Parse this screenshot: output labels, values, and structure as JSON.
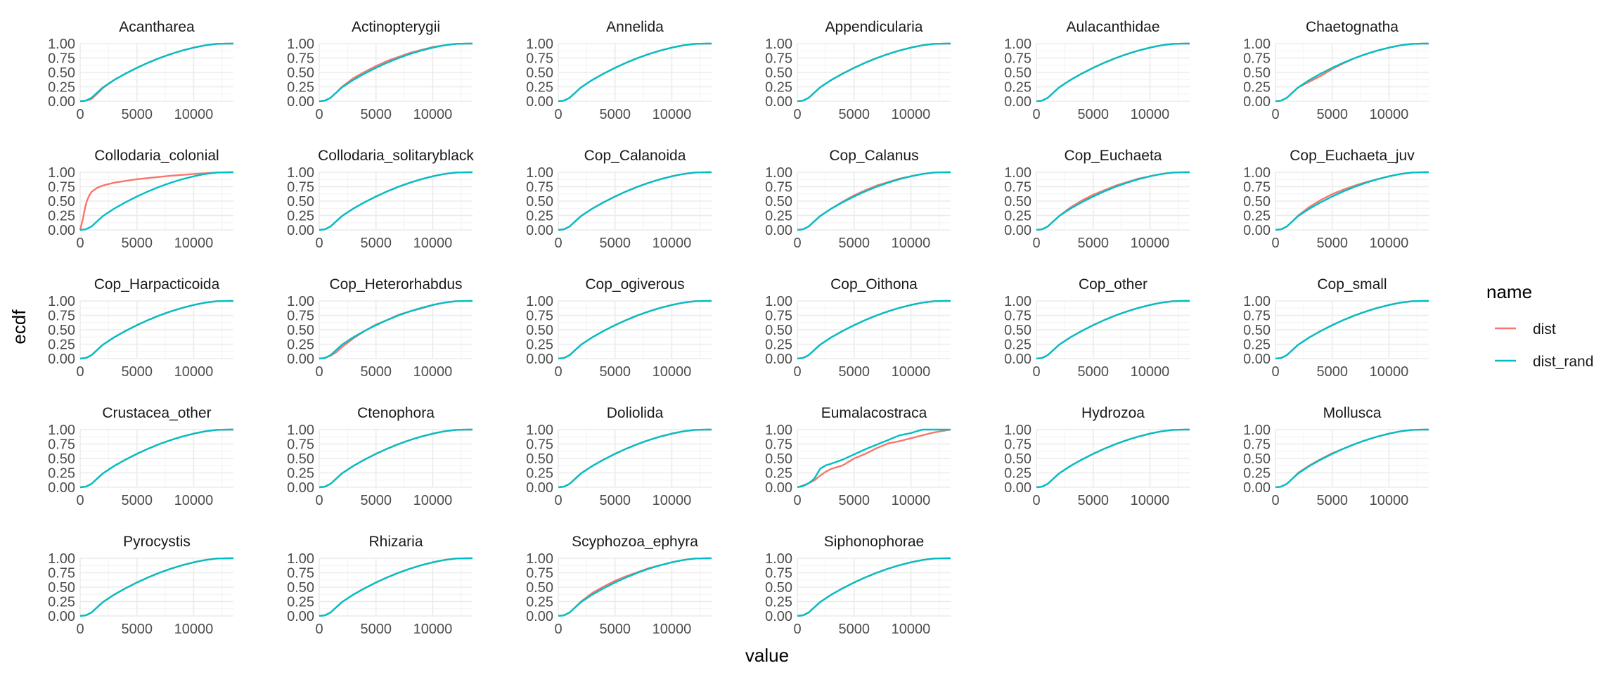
{
  "chart_data": {
    "type": "line",
    "facet_layout": "facet_wrap, 6 columns",
    "xlabel": "value",
    "ylabel": "ecdf",
    "xlim": [
      0,
      13500
    ],
    "ylim": [
      0,
      1
    ],
    "x_ticks": [
      0,
      5000,
      10000
    ],
    "y_ticks": [
      0.0,
      0.25,
      0.5,
      0.75,
      1.0
    ],
    "y_tick_labels": [
      "0.00",
      "0.25",
      "0.50",
      "0.75",
      "1.00"
    ],
    "grid": true,
    "legend": {
      "title": "name",
      "placement": "right",
      "entries": [
        {
          "name": "dist",
          "color": "#F8766D"
        },
        {
          "name": "dist_rand",
          "color": "#00BFC4"
        }
      ]
    },
    "colors": {
      "dist": "#F8766D",
      "dist_rand": "#00BFC4",
      "grid": "#EBEBEB"
    },
    "reference_curve": {
      "name": "dist_rand",
      "x": [
        0,
        500,
        1000,
        1500,
        2000,
        3000,
        4000,
        5000,
        6000,
        7000,
        8000,
        9000,
        10000,
        11000,
        12000,
        13000,
        13500
      ],
      "y": [
        0.0,
        0.01,
        0.06,
        0.15,
        0.24,
        0.37,
        0.48,
        0.58,
        0.67,
        0.75,
        0.82,
        0.88,
        0.93,
        0.97,
        0.995,
        1.0,
        1.0
      ]
    },
    "panels": [
      {
        "title": "Acantharea",
        "dist_offset": [
          0,
          0,
          -0.02,
          -0.02,
          -0.01,
          0,
          0,
          0,
          0,
          0,
          0,
          0,
          0,
          0,
          0,
          0,
          0
        ]
      },
      {
        "title": "Actinopterygii",
        "dist_offset": [
          0,
          0,
          0,
          0,
          0.01,
          0.03,
          0.03,
          0.03,
          0.03,
          0.02,
          0.02,
          0.01,
          0.01,
          0,
          0,
          0,
          0
        ]
      },
      {
        "title": "Annelida"
      },
      {
        "title": "Appendicularia"
      },
      {
        "title": "Aulacanthidae"
      },
      {
        "title": "Chaetognatha",
        "dist_offset": [
          0,
          0,
          0,
          0,
          0,
          -0.03,
          -0.04,
          -0.02,
          -0.01,
          0,
          0,
          0,
          0,
          0,
          0,
          0,
          0
        ]
      },
      {
        "title": "Collodaria_colonial",
        "dist_curve": {
          "x": [
            0,
            250,
            500,
            750,
            1000,
            1500,
            2000,
            3000,
            4000,
            5000,
            6000,
            7000,
            8000,
            10000,
            12000,
            13500
          ],
          "y": [
            0.0,
            0.2,
            0.45,
            0.58,
            0.66,
            0.73,
            0.77,
            0.82,
            0.85,
            0.88,
            0.9,
            0.92,
            0.94,
            0.97,
            0.995,
            1.0
          ]
        }
      },
      {
        "title": "Collodaria_solitaryblack"
      },
      {
        "title": "Cop_Calanoida"
      },
      {
        "title": "Cop_Calanus",
        "dist_offset": [
          0,
          0,
          0,
          0,
          0,
          0,
          0.01,
          0.02,
          0.02,
          0.02,
          0.01,
          0.01,
          0,
          0,
          0,
          0,
          0
        ]
      },
      {
        "title": "Cop_Euchaeta",
        "dist_offset": [
          0,
          0,
          0,
          0,
          0,
          0.02,
          0.03,
          0.03,
          0.02,
          0.02,
          0.01,
          0.01,
          0,
          0,
          0,
          0,
          0
        ]
      },
      {
        "title": "Cop_Euchaeta_juv",
        "dist_offset": [
          0,
          0,
          0,
          0,
          0.01,
          0.03,
          0.04,
          0.04,
          0.03,
          0.02,
          0.01,
          0,
          0,
          0,
          0,
          0,
          0
        ]
      },
      {
        "title": "Cop_Harpacticoida"
      },
      {
        "title": "Cop_Heterorhabdus",
        "dist_offset": [
          0,
          0,
          -0.01,
          -0.04,
          -0.04,
          -0.02,
          0,
          0.01,
          0,
          0.01,
          0,
          -0.01,
          0,
          0,
          0,
          0,
          0
        ]
      },
      {
        "title": "Cop_ogiverous"
      },
      {
        "title": "Cop_Oithona"
      },
      {
        "title": "Cop_other"
      },
      {
        "title": "Cop_small"
      },
      {
        "title": "Crustacea_other"
      },
      {
        "title": "Ctenophora"
      },
      {
        "title": "Doliolida"
      },
      {
        "title": "Eumalacostraca",
        "dist_curve": {
          "x": [
            0,
            500,
            1000,
            1500,
            2000,
            2500,
            3000,
            4000,
            5000,
            6000,
            7000,
            8000,
            9000,
            10000,
            11000,
            12000,
            13500
          ],
          "y": [
            0.0,
            0.03,
            0.07,
            0.12,
            0.2,
            0.27,
            0.32,
            0.38,
            0.5,
            0.58,
            0.68,
            0.76,
            0.8,
            0.85,
            0.9,
            0.95,
            1.0
          ]
        },
        "dist_rand_curve": {
          "x": [
            0,
            500,
            1000,
            1500,
            2000,
            2500,
            3000,
            4000,
            5000,
            6000,
            7000,
            8000,
            9000,
            10000,
            11000,
            12000,
            13500
          ],
          "y": [
            0.0,
            0.02,
            0.07,
            0.15,
            0.32,
            0.38,
            0.41,
            0.48,
            0.57,
            0.66,
            0.74,
            0.82,
            0.9,
            0.94,
            1.0,
            1.0,
            1.0
          ]
        }
      },
      {
        "title": "Hydrozoa"
      },
      {
        "title": "Mollusca",
        "dist_offset": [
          0,
          0,
          0,
          0,
          0.01,
          0.01,
          0.01,
          0.01,
          0,
          0,
          0,
          0,
          0,
          0,
          0,
          0,
          0
        ]
      },
      {
        "title": "Pyrocystis"
      },
      {
        "title": "Rhizaria"
      },
      {
        "title": "Scyphozoa_ephyra",
        "dist_offset": [
          0,
          0,
          0,
          0,
          0.01,
          0.03,
          0.03,
          0.03,
          0.02,
          0.01,
          0.01,
          0,
          0,
          0,
          0,
          0,
          0
        ]
      },
      {
        "title": "Siphonophorae"
      }
    ]
  }
}
